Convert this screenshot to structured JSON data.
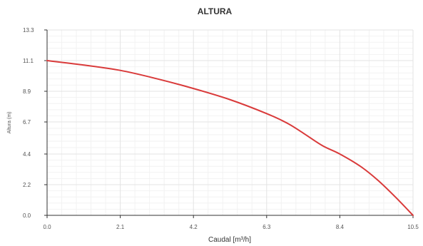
{
  "chart_data": {
    "type": "line",
    "title": "ALTURA",
    "xlabel": "Caudal [m³/h]",
    "ylabel": "Altura (m)",
    "xlim": [
      0,
      10.5
    ],
    "ylim": [
      0,
      13.3
    ],
    "x_ticks": [
      "0.0",
      "2.1",
      "4.2",
      "6.3",
      "8.4",
      "10.5"
    ],
    "y_ticks": [
      "0.0",
      "2.2",
      "4.4",
      "6.7",
      "8.9",
      "11.1",
      "13.3"
    ],
    "grid": true,
    "series": [
      {
        "color": "#d93a3a",
        "points": [
          {
            "x": 0.0,
            "y": 11.1
          },
          {
            "x": 1.0,
            "y": 10.8
          },
          {
            "x": 2.1,
            "y": 10.4
          },
          {
            "x": 3.15,
            "y": 9.8
          },
          {
            "x": 4.2,
            "y": 9.1
          },
          {
            "x": 5.25,
            "y": 8.3
          },
          {
            "x": 6.3,
            "y": 7.3
          },
          {
            "x": 6.9,
            "y": 6.6
          },
          {
            "x": 7.35,
            "y": 5.9
          },
          {
            "x": 7.9,
            "y": 5.0
          },
          {
            "x": 8.4,
            "y": 4.4
          },
          {
            "x": 9.0,
            "y": 3.5
          },
          {
            "x": 9.5,
            "y": 2.5
          },
          {
            "x": 10.0,
            "y": 1.3
          },
          {
            "x": 10.5,
            "y": 0.0
          }
        ]
      }
    ]
  }
}
